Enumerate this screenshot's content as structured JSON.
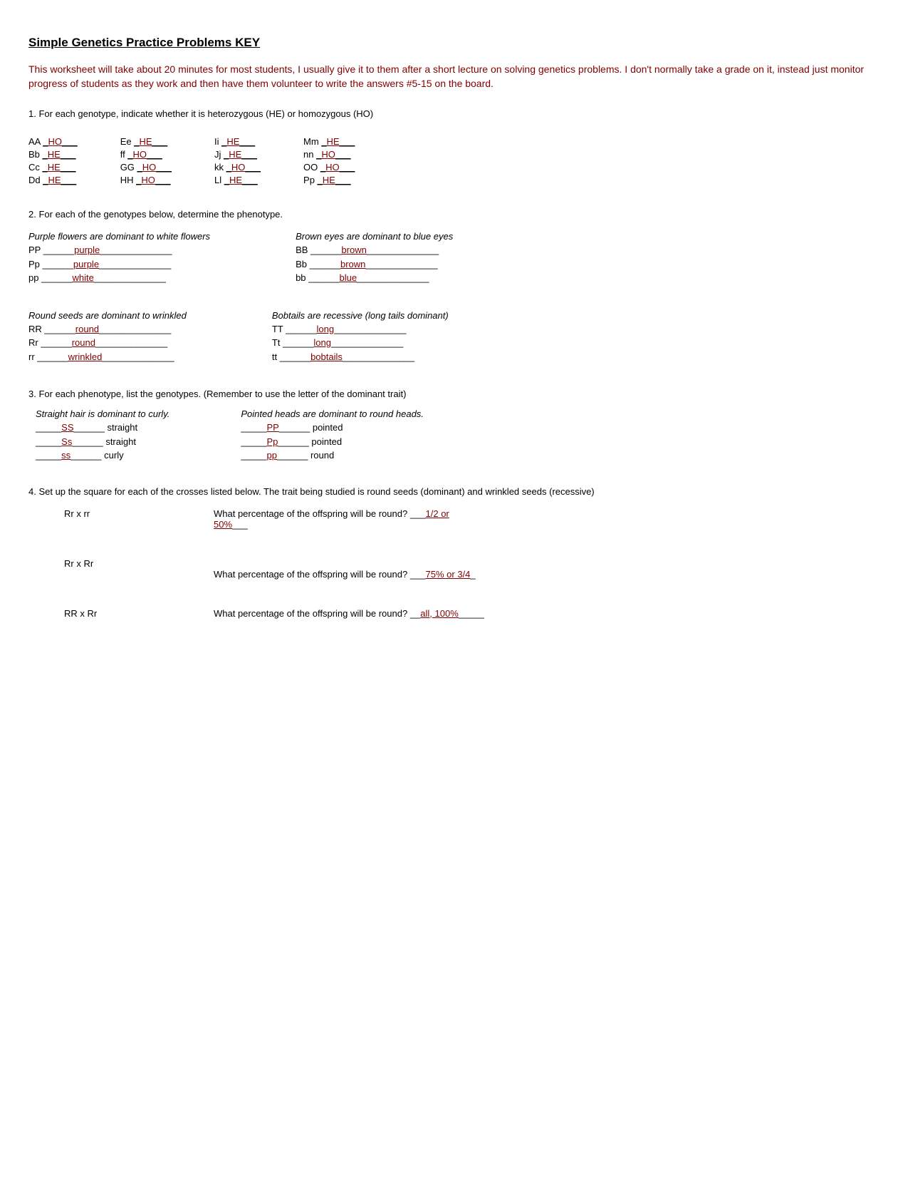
{
  "title_main": "Simple Genetics Practice Problems",
  "title_key": " KEY",
  "intro": "This worksheet will take about 20 minutes for most students, I usually give it to them after a short lecture on solving genetics problems. I don't normally take a grade on it, instead just monitor progress of students as they work and then have them volunteer to write the answers #5-15 on the board.",
  "q1_text": "1. For each genotype, indicate whether it is heterozygous (HE) or homozygous (HO)",
  "q1_cols": [
    [
      {
        "g": "AA",
        "a": "HO"
      },
      {
        "g": "Bb",
        "a": "HE"
      },
      {
        "g": "Cc",
        "a": "HE"
      },
      {
        "g": "Dd",
        "a": "HE"
      }
    ],
    [
      {
        "g": "Ee",
        "a": "HE"
      },
      {
        "g": "ff",
        "a": "HO"
      },
      {
        "g": "GG",
        "a": "HO"
      },
      {
        "g": "HH",
        "a": "HO"
      }
    ],
    [
      {
        "g": "Ii",
        "a": "HE"
      },
      {
        "g": "Jj",
        "a": "HE"
      },
      {
        "g": "kk",
        "a": "HO"
      },
      {
        "g": "Ll",
        "a": "HE"
      }
    ],
    [
      {
        "g": "Mm",
        "a": "HE"
      },
      {
        "g": "nn",
        "a": "HO"
      },
      {
        "g": "OO",
        "a": "HO"
      },
      {
        "g": "Pp",
        "a": "HE"
      }
    ]
  ],
  "q2_text": "2. For each of the genotypes below, determine the phenotype.",
  "q2_groups": [
    [
      {
        "heading": "Purple flowers are dominant to white flowers",
        "rows": [
          {
            "g": "PP",
            "a": "purple"
          },
          {
            "g": "Pp",
            "a": "purple"
          },
          {
            "g": "pp",
            "a": "white"
          }
        ]
      },
      {
        "heading": "Brown eyes are dominant to blue eyes",
        "rows": [
          {
            "g": "BB",
            "a": "brown"
          },
          {
            "g": "Bb",
            "a": "brown"
          },
          {
            "g": "bb",
            "a": "blue"
          }
        ]
      }
    ],
    [
      {
        "heading": "Round seeds are dominant to wrinkled",
        "rows": [
          {
            "g": "RR",
            "a": "round"
          },
          {
            "g": "Rr",
            "a": "round"
          },
          {
            "g": "rr",
            "a": "wrinkled"
          }
        ]
      },
      {
        "heading": "Bobtails are recessive (long tails dominant)",
        "rows": [
          {
            "g": "TT",
            "a": "long"
          },
          {
            "g": "Tt",
            "a": "long"
          },
          {
            "g": "tt",
            "a": "bobtails"
          }
        ]
      }
    ]
  ],
  "q3_text": "3. For each phenotype, list the genotypes. (Remember to use the letter of the dominant trait)",
  "q3_blocks": [
    {
      "heading": "Straight hair is dominant to curly.",
      "rows": [
        {
          "a": "SS",
          "p": "straight"
        },
        {
          "a": "Ss",
          "p": "straight"
        },
        {
          "a": "ss",
          "p": "curly"
        }
      ]
    },
    {
      "heading": "Pointed heads are dominant to round heads.",
      "rows": [
        {
          "a": "PP",
          "p": "pointed"
        },
        {
          "a": "Pp",
          "p": "pointed"
        },
        {
          "a": "pp",
          "p": "round"
        }
      ]
    }
  ],
  "q4_text": "4. Set up the square for each of the crosses listed below. The trait being studied is round seeds (dominant) and wrinkled seeds (recessive)",
  "q4_question_prefix": "What percentage of the offspring will be round? ",
  "q4_rows": [
    {
      "cross": "Rr x rr",
      "ans": "1/2 or 50%"
    },
    {
      "cross": "Rr x Rr",
      "ans": "75% or 3/4"
    },
    {
      "cross": "RR x Rr",
      "ans": "all, 100%"
    }
  ],
  "colors": {
    "answer": "#800000",
    "text": "#000000",
    "background": "#ffffff"
  }
}
